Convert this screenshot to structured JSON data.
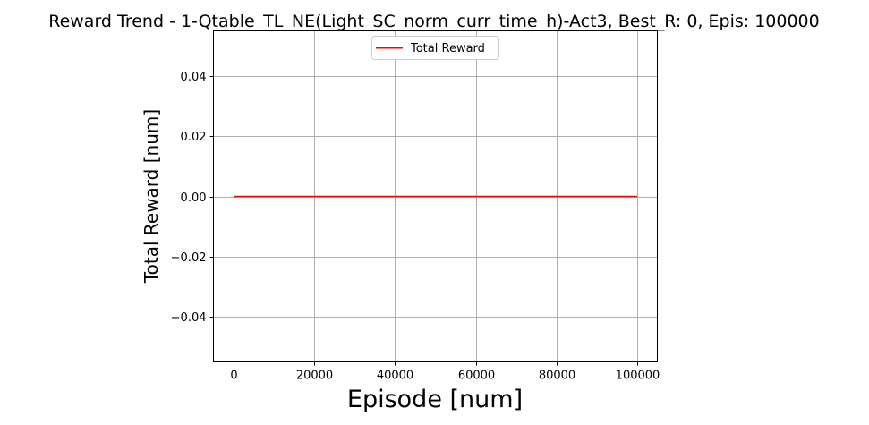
{
  "chart_data": {
    "type": "line",
    "title": "Reward Trend - 1-Qtable_TL_NE(Light_SC_norm_curr_time_h)-Act3, Best_R: 0, Epis: 100000",
    "xlabel": "Episode [num]",
    "ylabel": "Total Reward [num]",
    "xlim": [
      -5000,
      105000
    ],
    "ylim": [
      -0.055,
      0.055
    ],
    "x_ticks": [
      0,
      20000,
      40000,
      60000,
      80000,
      100000
    ],
    "x_tick_labels": [
      "0",
      "20000",
      "40000",
      "60000",
      "80000",
      "100000"
    ],
    "y_ticks": [
      -0.04,
      -0.02,
      0.0,
      0.02,
      0.04
    ],
    "y_tick_labels": [
      "−0.04",
      "−0.02",
      "0.00",
      "0.02",
      "0.04"
    ],
    "grid": true,
    "legend": "top-center",
    "series": [
      {
        "name": "Total Reward",
        "color": "#ff0000",
        "x": [
          0,
          100000
        ],
        "y": [
          0,
          0
        ]
      }
    ]
  }
}
